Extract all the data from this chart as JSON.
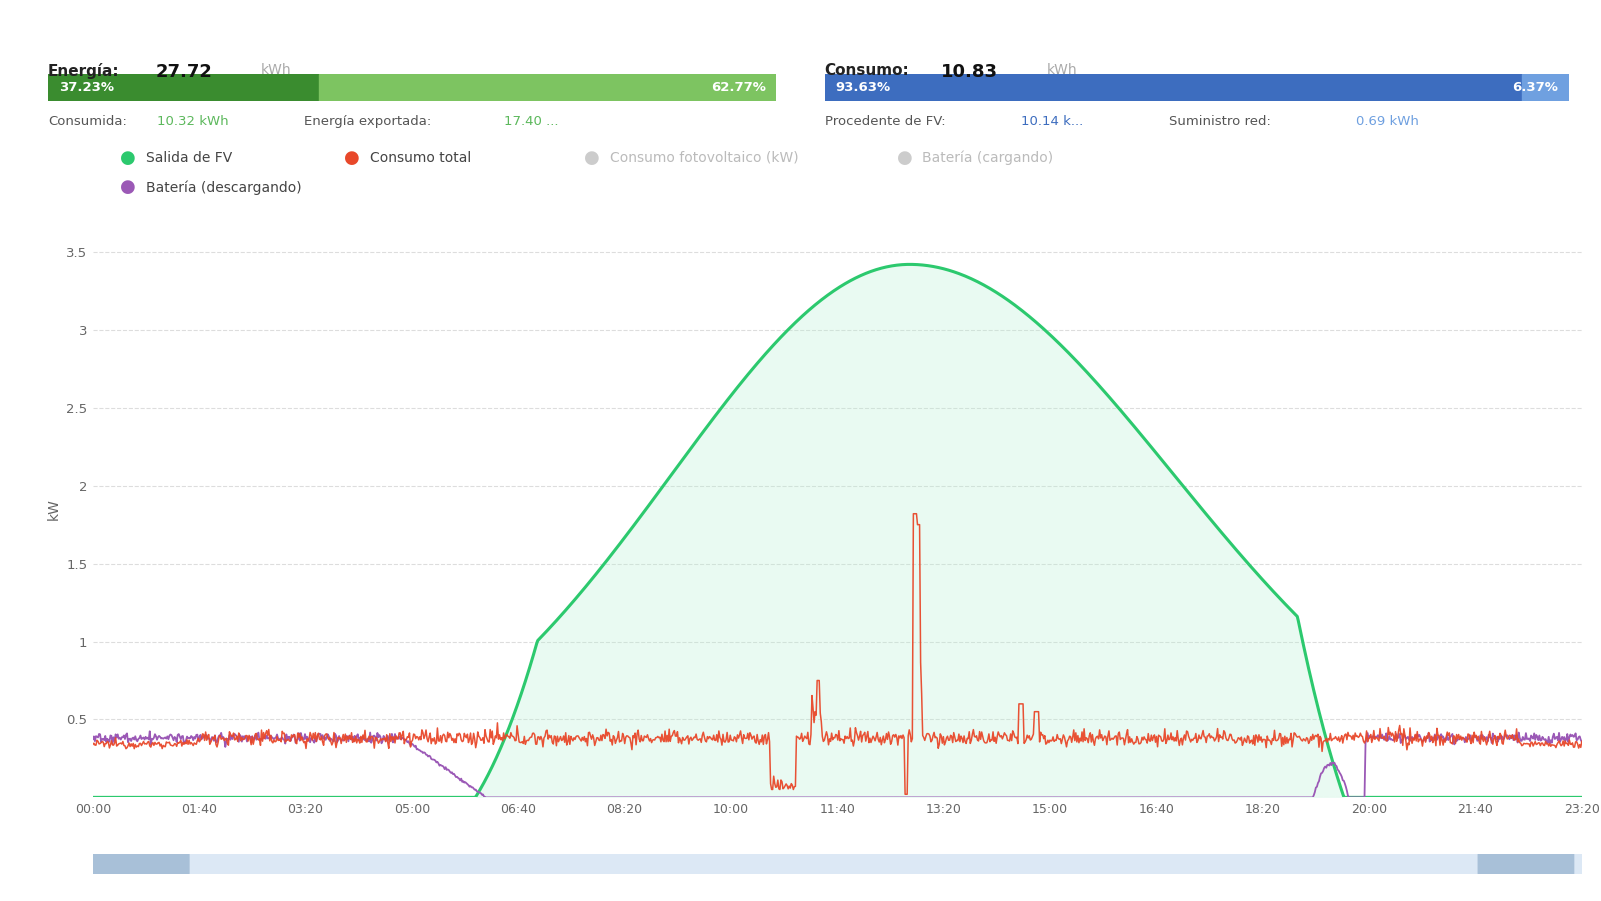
{
  "energia_label": "Energía:",
  "energia_value": "27.72",
  "energia_unit": "kWh",
  "bar1_pct1": 37.23,
  "bar1_pct2": 62.77,
  "bar1_color1": "#3a8c2f",
  "bar1_color2": "#7dc461",
  "bar1_label1": "37.23%",
  "bar1_label2": "62.77%",
  "consumida_label": "Consumida:",
  "consumida_value": "10.32 kWh",
  "exportada_label": "Energía exportada:",
  "exportada_value": "17.40 ...",
  "exportada_color": "#5cb85c",
  "consumo_label": "Consumo:",
  "consumo_value": "10.83",
  "consumo_unit": "kWh",
  "bar2_pct1": 93.63,
  "bar2_pct2": 6.37,
  "bar2_color1": "#3d6dbf",
  "bar2_color2": "#6fa0e0",
  "bar2_label1": "93.63%",
  "bar2_label2": "6.37%",
  "procedente_label": "Procedente de FV:",
  "procedente_value": "10.14 k...",
  "procedente_color": "#3d6dbf",
  "suministro_label": "Suministro red:",
  "suministro_value": "0.69 kWh",
  "suministro_color": "#6fa0e0",
  "legend_items": [
    {
      "label": "Salida de FV",
      "color": "#2cc96e",
      "active": true
    },
    {
      "label": "Consumo total",
      "color": "#e8482a",
      "active": true
    },
    {
      "label": "Consumo fotovoltaico (kW)",
      "color": "#bbbbbb",
      "active": false
    },
    {
      "label": "Batería (cargando)",
      "color": "#bbbbbb",
      "active": false
    },
    {
      "label": "Batería (descargando)",
      "color": "#9b59b6",
      "active": true
    }
  ],
  "ylabel": "kW",
  "yticks": [
    0,
    0.5,
    1,
    1.5,
    2,
    2.5,
    3,
    3.5
  ],
  "xtick_labels": [
    "00:00",
    "01:40",
    "03:20",
    "05:00",
    "06:40",
    "08:20",
    "10:00",
    "11:40",
    "13:20",
    "15:00",
    "16:40",
    "18:20",
    "20:00",
    "21:40",
    "23:20"
  ],
  "fv_color": "#2cc96e",
  "fv_fill_color": "#b8f0d4",
  "consumption_color": "#e8482a",
  "battery_color": "#9b59b6",
  "background_color": "#ffffff",
  "grid_color": "#dddddd",
  "scrollbar_bg": "#dce8f5",
  "scrollbar_handle": "#a8c0d8"
}
